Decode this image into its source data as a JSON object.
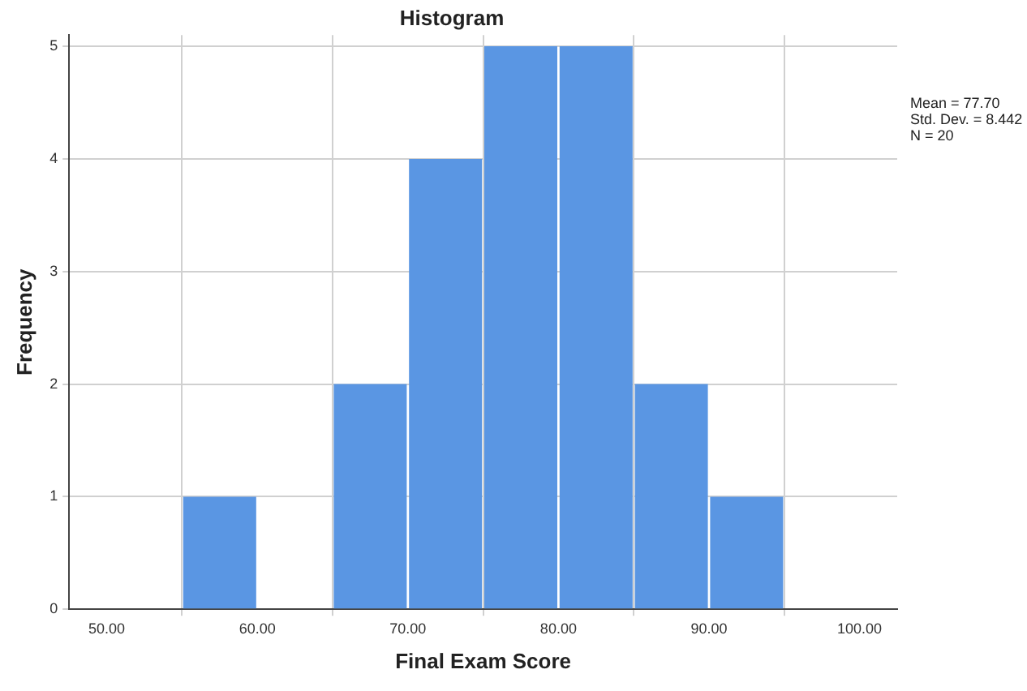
{
  "chart_data": {
    "type": "histogram",
    "title": "Histogram",
    "xlabel": "Final Exam Score",
    "ylabel": "Frequency",
    "bins": [
      55,
      60,
      65,
      70,
      75,
      80,
      85,
      90,
      95
    ],
    "values": [
      1,
      0,
      2,
      4,
      5,
      5,
      2,
      1
    ],
    "color": "#5a96e3",
    "xlim": [
      47.5,
      102.5
    ],
    "xticks": [
      {
        "value": 50,
        "label": "50.00"
      },
      {
        "value": 60,
        "label": "60.00"
      },
      {
        "value": 70,
        "label": "70.00"
      },
      {
        "value": 80,
        "label": "80.00"
      },
      {
        "value": 90,
        "label": "90.00"
      },
      {
        "value": 100,
        "label": "100.00"
      }
    ],
    "ylim": [
      0,
      5.1
    ],
    "yticks": [
      0,
      1,
      2,
      3,
      4,
      5
    ],
    "grid": true,
    "legend": false,
    "annotations": [
      "Mean = 77.70",
      "Std. Dev. = 8.442",
      "N = 20"
    ]
  }
}
